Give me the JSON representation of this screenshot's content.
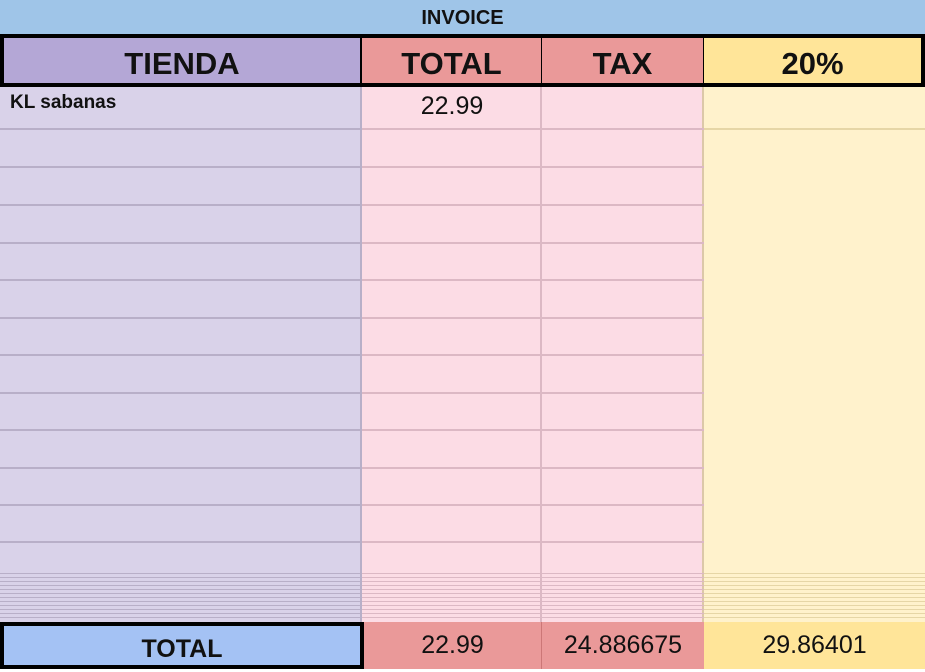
{
  "title": "INVOICE",
  "headers": {
    "tienda": "TIENDA",
    "total": "TOTAL",
    "tax": "TAX",
    "pct": "20%"
  },
  "rows": [
    {
      "tienda": "KL sabanas",
      "total": "22.99",
      "tax": "",
      "pct": ""
    }
  ],
  "totals": {
    "label": "TOTAL",
    "total": "22.99",
    "tax": "24.886675",
    "pct": "29.86401"
  },
  "colors": {
    "title": "#9fc5e8",
    "tienda": "#b4a7d6",
    "total": "#ea9999",
    "pct": "#ffe599",
    "total_label": "#a4c2f4"
  }
}
